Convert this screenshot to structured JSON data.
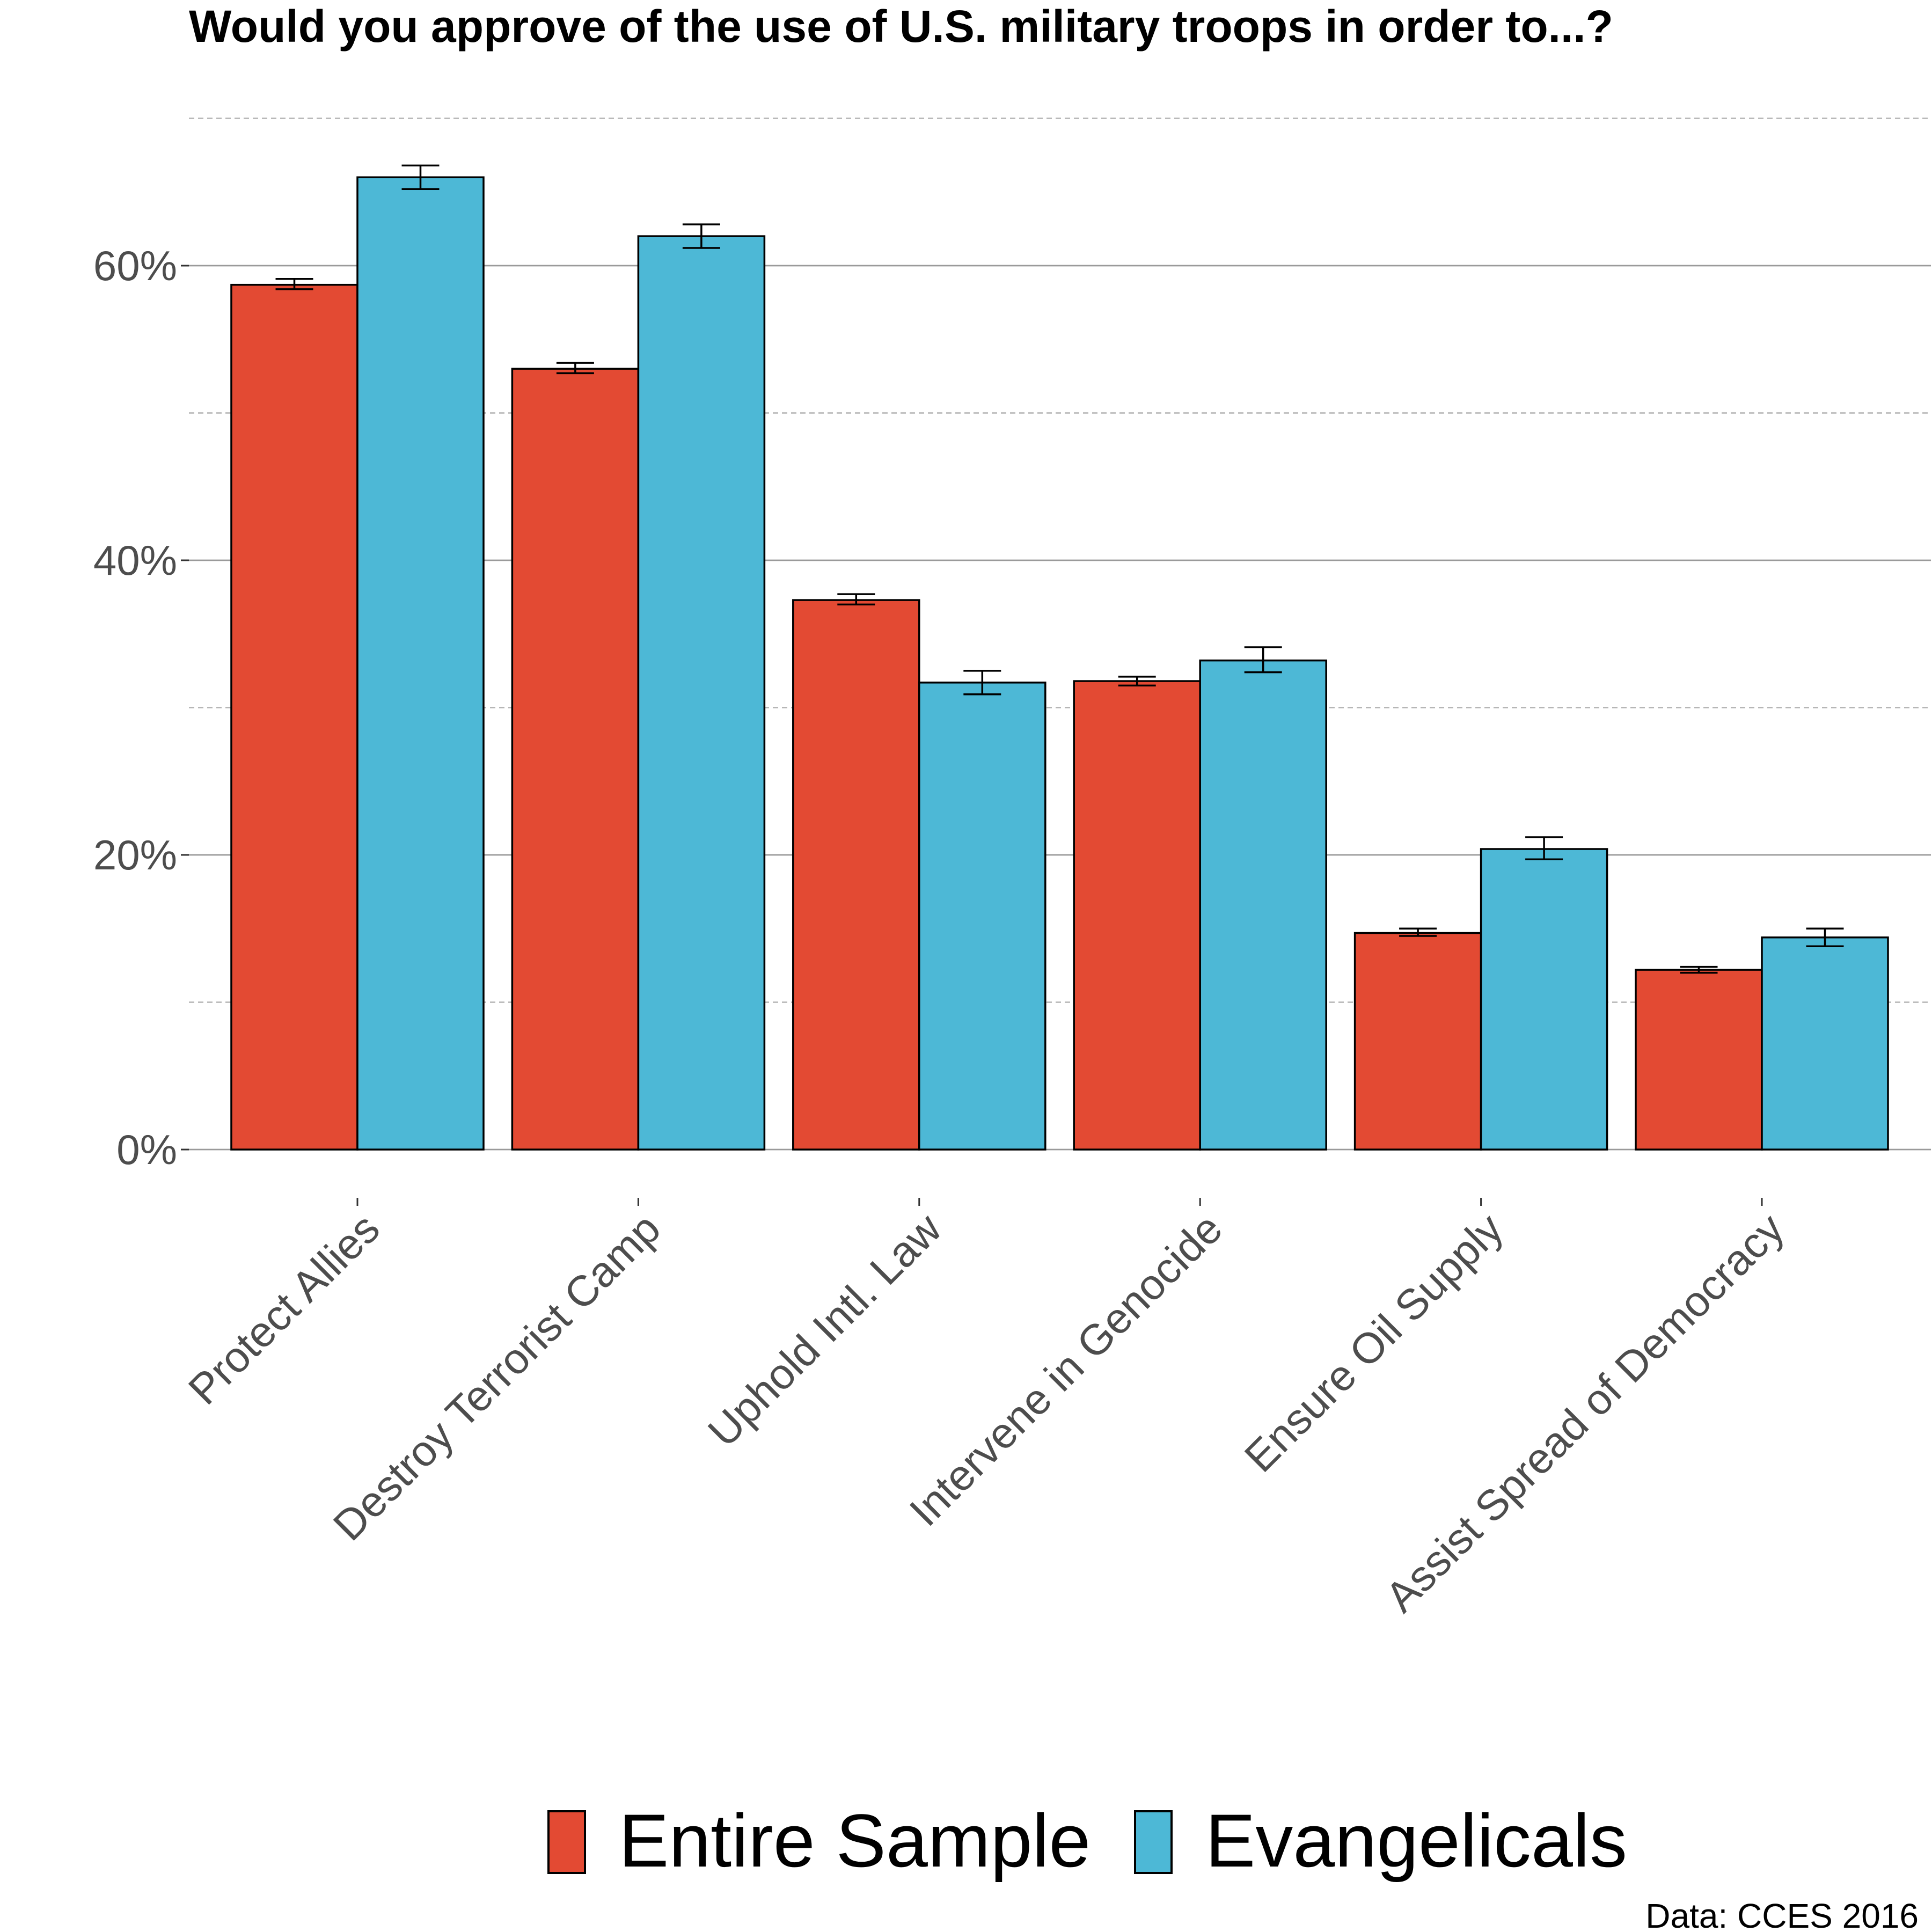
{
  "chart_data": {
    "type": "bar",
    "title": "Would you approve of the use of U.S. military troops in order to...?",
    "xlabel": "",
    "ylabel": "",
    "caption": "Data: CCES 2016",
    "categories": [
      "Protect Allies",
      "Destroy Terrorist Camp",
      "Uphold Intl. Law",
      "Intervene in Genocide",
      "Ensure Oil Supply",
      "Assist Spread of Democracy"
    ],
    "series": [
      {
        "name": "Entire Sample",
        "color": "#e34a33",
        "values": [
          58.7,
          53.0,
          37.3,
          31.8,
          14.7,
          12.2
        ],
        "error_low": [
          58.4,
          52.7,
          37.0,
          31.5,
          14.5,
          12.0
        ],
        "error_high": [
          59.1,
          53.4,
          37.7,
          32.1,
          15.0,
          12.4
        ]
      },
      {
        "name": "Evangelicals",
        "color": "#4db8d6",
        "values": [
          66.0,
          62.0,
          31.7,
          33.2,
          20.4,
          14.4
        ],
        "error_low": [
          65.2,
          61.2,
          30.9,
          32.4,
          19.7,
          13.8
        ],
        "error_high": [
          66.8,
          62.8,
          32.5,
          34.1,
          21.2,
          15.0
        ]
      }
    ],
    "y_ticks": [
      0,
      20,
      40,
      60
    ],
    "y_tick_labels": [
      "0%",
      "20%",
      "40%",
      "60%"
    ],
    "ylim": [
      -1.5,
      70
    ],
    "grid": "major solid, minor dashed",
    "legend_position": "bottom"
  }
}
